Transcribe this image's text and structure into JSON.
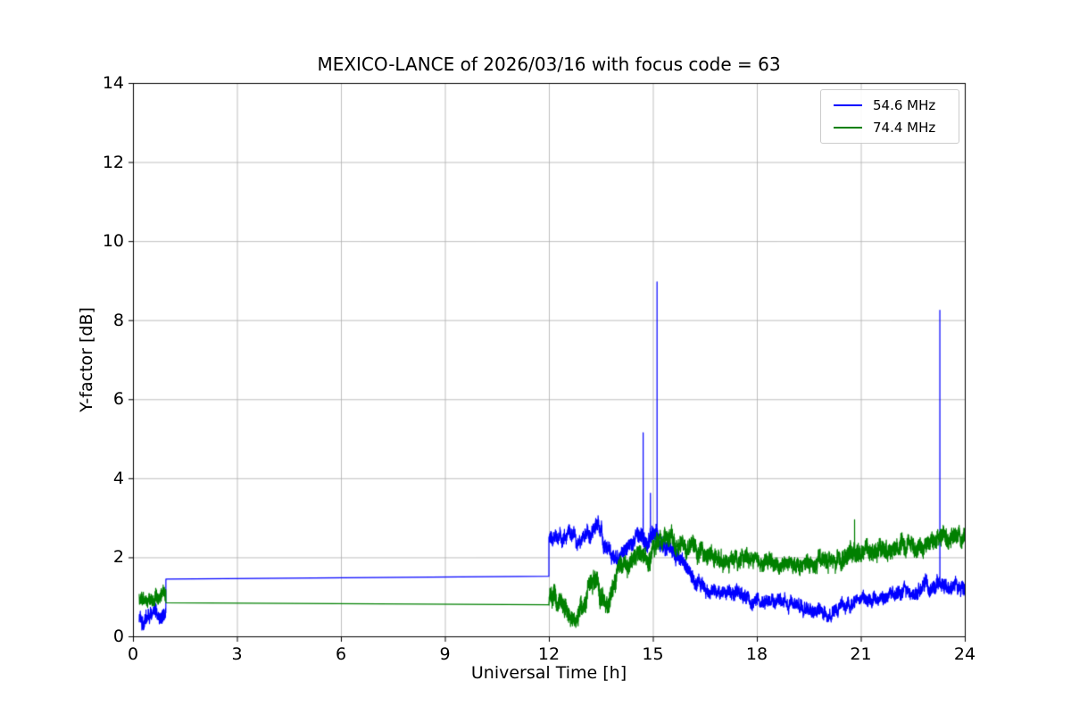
{
  "chart_data": {
    "type": "line",
    "title": "MEXICO-LANCE of 2026/03/16 with focus code = 63",
    "xlabel": "Universal Time [h]",
    "ylabel": "Y-factor [dB]",
    "xlim": [
      0,
      24
    ],
    "ylim": [
      0,
      14
    ],
    "xticks": [
      0,
      3,
      6,
      9,
      12,
      15,
      18,
      21,
      24
    ],
    "yticks": [
      0,
      2,
      4,
      6,
      8,
      10,
      12,
      14
    ],
    "grid": true,
    "grid_color": "#b0b0b0",
    "axis_color": "#000000",
    "background_color": "#ffffff",
    "legend_position": "upper right",
    "encoding_note": "noisy segments use keypoints [hour, mean_dB, jitter_amplitude_dB]; line segments use points [hour, dB]; spikes are [hour, peak_dB]",
    "series": [
      {
        "name": "54.6 MHz",
        "color": "#0000ff",
        "segments": [
          {
            "kind": "noisy",
            "keypoints": [
              [
                0.18,
                0.5,
                0.32
              ],
              [
                0.45,
                0.5,
                0.3
              ],
              [
                0.7,
                0.55,
                0.3
              ],
              [
                0.95,
                0.62,
                0.28
              ]
            ]
          },
          {
            "kind": "line",
            "points": [
              [
                0.95,
                1.45
              ],
              [
                12.0,
                1.52
              ]
            ]
          },
          {
            "kind": "noisy",
            "keypoints": [
              [
                12.0,
                2.5,
                0.25
              ],
              [
                12.3,
                2.45,
                0.28
              ],
              [
                12.6,
                2.55,
                0.28
              ],
              [
                12.9,
                2.35,
                0.25
              ],
              [
                13.2,
                2.7,
                0.3
              ],
              [
                13.45,
                2.95,
                0.32
              ],
              [
                13.6,
                2.25,
                0.3
              ],
              [
                13.9,
                2.0,
                0.25
              ],
              [
                14.2,
                2.35,
                0.28
              ],
              [
                14.5,
                2.45,
                0.3
              ],
              [
                14.8,
                2.5,
                0.35
              ],
              [
                15.0,
                2.6,
                0.38
              ],
              [
                15.2,
                2.4,
                0.32
              ],
              [
                15.5,
                2.2,
                0.3
              ],
              [
                15.8,
                1.9,
                0.28
              ],
              [
                16.2,
                1.5,
                0.28
              ],
              [
                16.6,
                1.2,
                0.25
              ],
              [
                17.0,
                1.1,
                0.25
              ],
              [
                17.4,
                1.15,
                0.28
              ],
              [
                17.8,
                0.95,
                0.25
              ],
              [
                18.2,
                0.85,
                0.25
              ],
              [
                18.6,
                0.9,
                0.25
              ],
              [
                19.0,
                0.8,
                0.25
              ],
              [
                19.4,
                0.75,
                0.25
              ],
              [
                19.8,
                0.65,
                0.25
              ],
              [
                20.1,
                0.6,
                0.25
              ],
              [
                20.4,
                0.7,
                0.25
              ],
              [
                20.8,
                0.85,
                0.25
              ],
              [
                21.2,
                0.9,
                0.25
              ],
              [
                21.6,
                1.0,
                0.25
              ],
              [
                22.0,
                1.05,
                0.25
              ],
              [
                22.4,
                1.15,
                0.25
              ],
              [
                22.8,
                1.25,
                0.28
              ],
              [
                23.2,
                1.3,
                0.3
              ],
              [
                23.6,
                1.35,
                0.3
              ],
              [
                24.0,
                1.3,
                0.28
              ]
            ]
          }
        ],
        "spikes": [
          [
            14.72,
            5.15
          ],
          [
            14.93,
            3.62
          ],
          [
            15.12,
            8.97
          ],
          [
            23.28,
            8.25
          ]
        ]
      },
      {
        "name": "74.4 MHz",
        "color": "#008000",
        "segments": [
          {
            "kind": "noisy",
            "keypoints": [
              [
                0.18,
                0.9,
                0.28
              ],
              [
                0.5,
                0.95,
                0.25
              ],
              [
                0.75,
                1.1,
                0.3
              ],
              [
                0.88,
                1.25,
                0.3
              ],
              [
                0.95,
                1.05,
                0.25
              ]
            ]
          },
          {
            "kind": "line",
            "points": [
              [
                0.95,
                0.85
              ],
              [
                12.0,
                0.8
              ]
            ]
          },
          {
            "kind": "noisy",
            "keypoints": [
              [
                12.0,
                0.9,
                0.45
              ],
              [
                12.2,
                1.0,
                0.45
              ],
              [
                12.45,
                0.7,
                0.4
              ],
              [
                12.65,
                0.4,
                0.35
              ],
              [
                12.85,
                0.55,
                0.4
              ],
              [
                13.05,
                1.1,
                0.45
              ],
              [
                13.3,
                1.45,
                0.4
              ],
              [
                13.5,
                0.9,
                0.45
              ],
              [
                13.7,
                0.75,
                0.4
              ],
              [
                13.85,
                1.2,
                0.45
              ],
              [
                14.05,
                1.75,
                0.4
              ],
              [
                14.3,
                1.9,
                0.35
              ],
              [
                14.6,
                1.95,
                0.35
              ],
              [
                14.9,
                2.0,
                0.4
              ],
              [
                15.2,
                2.6,
                0.35
              ],
              [
                15.45,
                2.5,
                0.35
              ],
              [
                15.7,
                2.3,
                0.35
              ],
              [
                16.0,
                2.2,
                0.35
              ],
              [
                16.4,
                2.1,
                0.35
              ],
              [
                16.8,
                2.0,
                0.35
              ],
              [
                17.2,
                1.9,
                0.35
              ],
              [
                17.6,
                1.85,
                0.35
              ],
              [
                18.0,
                1.9,
                0.3
              ],
              [
                18.4,
                1.85,
                0.3
              ],
              [
                18.8,
                1.8,
                0.3
              ],
              [
                19.2,
                1.75,
                0.3
              ],
              [
                19.6,
                1.8,
                0.3
              ],
              [
                20.0,
                1.9,
                0.35
              ],
              [
                20.4,
                2.0,
                0.35
              ],
              [
                20.8,
                2.2,
                0.42
              ],
              [
                21.2,
                2.1,
                0.35
              ],
              [
                21.6,
                2.2,
                0.35
              ],
              [
                22.0,
                2.25,
                0.35
              ],
              [
                22.4,
                2.3,
                0.35
              ],
              [
                22.8,
                2.35,
                0.35
              ],
              [
                23.2,
                2.45,
                0.35
              ],
              [
                23.6,
                2.5,
                0.35
              ],
              [
                24.0,
                2.6,
                0.3
              ]
            ]
          }
        ],
        "spikes": [
          [
            20.82,
            2.95
          ]
        ]
      }
    ]
  }
}
